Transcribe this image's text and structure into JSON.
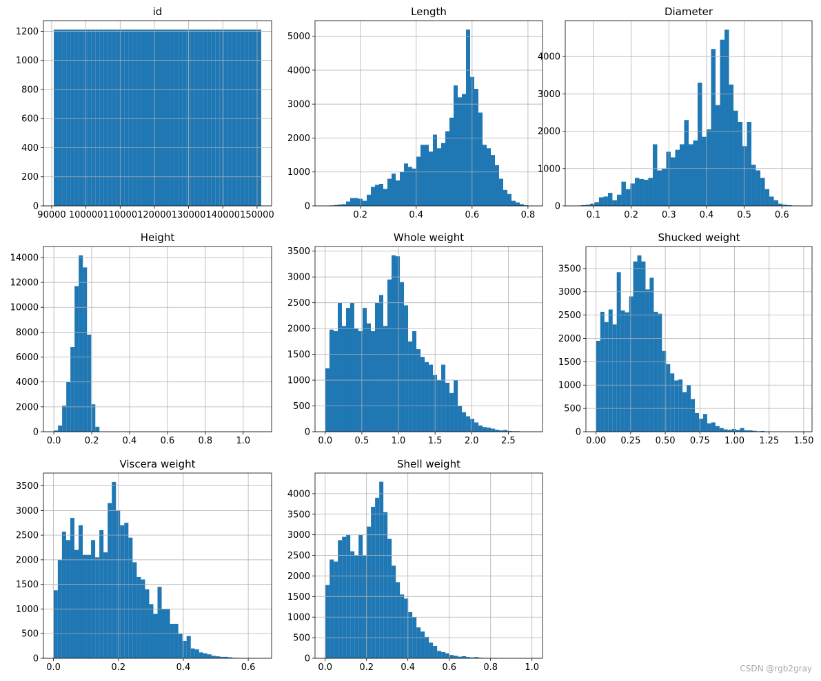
{
  "chart_data": [
    {
      "type": "histogram",
      "title": "id",
      "color": "#1f77b4",
      "grid": true,
      "bins": [
        90615,
        91827,
        93039,
        94251,
        95463,
        96675,
        97887,
        99099,
        100311,
        101523,
        102735,
        103947,
        105159,
        106371,
        107583,
        108795,
        110007,
        111219,
        112431,
        113643,
        114855,
        116067,
        117279,
        118491,
        119703,
        120915,
        122127,
        123339,
        124551,
        125763,
        126975,
        128187,
        129399,
        130611,
        131823,
        133035,
        134247,
        135459,
        136671,
        137883,
        139095,
        140307,
        141519,
        142731,
        143943,
        145155,
        146367,
        147579,
        148791,
        150003,
        151215
      ],
      "values": [
        1212,
        1212,
        1212,
        1212,
        1212,
        1212,
        1212,
        1212,
        1212,
        1212,
        1212,
        1212,
        1212,
        1212,
        1212,
        1212,
        1212,
        1212,
        1212,
        1212,
        1212,
        1212,
        1212,
        1212,
        1212,
        1212,
        1212,
        1212,
        1212,
        1212,
        1212,
        1212,
        1212,
        1212,
        1212,
        1212,
        1212,
        1212,
        1212,
        1212,
        1212,
        1212,
        1212,
        1212,
        1212,
        1212,
        1212,
        1212,
        1212,
        1212
      ],
      "xlim": [
        87585,
        154245
      ],
      "xticks": [
        90000,
        100000,
        110000,
        120000,
        130000,
        140000,
        150000
      ],
      "ylim": [
        0,
        1273
      ],
      "yticks": [
        0,
        200,
        400,
        600,
        800,
        1000,
        1200
      ]
    },
    {
      "type": "histogram",
      "title": "Length",
      "color": "#1f77b4",
      "grid": true,
      "bins": [
        0.075,
        0.0898,
        0.1046,
        0.1194,
        0.1342,
        0.149,
        0.1638,
        0.1786,
        0.1934,
        0.2082,
        0.223,
        0.2378,
        0.2526,
        0.2674,
        0.2822,
        0.297,
        0.3118,
        0.3266,
        0.3414,
        0.3562,
        0.371,
        0.3858,
        0.4006,
        0.4154,
        0.4302,
        0.445,
        0.4598,
        0.4746,
        0.4894,
        0.5042,
        0.519,
        0.5338,
        0.5486,
        0.5634,
        0.5782,
        0.593,
        0.6078,
        0.6226,
        0.6374,
        0.6522,
        0.667,
        0.6818,
        0.6966,
        0.7114,
        0.7262,
        0.741,
        0.7558,
        0.7706,
        0.7854,
        0.8002,
        0.815
      ],
      "values": [
        10,
        15,
        25,
        40,
        50,
        130,
        230,
        230,
        210,
        150,
        330,
        560,
        620,
        650,
        500,
        800,
        950,
        750,
        1000,
        1250,
        1150,
        1100,
        1450,
        1800,
        1800,
        1600,
        2100,
        1700,
        1850,
        2200,
        2600,
        3550,
        3200,
        3300,
        5200,
        3800,
        3450,
        2750,
        1800,
        1700,
        1500,
        1200,
        800,
        470,
        350,
        150,
        100,
        50,
        20,
        10
      ],
      "xlim": [
        0.038,
        0.852
      ],
      "xticks": [
        0.2,
        0.4,
        0.6,
        0.8
      ],
      "ylim": [
        0,
        5460
      ],
      "yticks": [
        0,
        1000,
        2000,
        3000,
        4000,
        5000
      ]
    },
    {
      "type": "histogram",
      "title": "Diameter",
      "color": "#1f77b4",
      "grid": true,
      "bins": [
        0.055,
        0.0669,
        0.0788,
        0.0907,
        0.1026,
        0.1145,
        0.1264,
        0.1383,
        0.1502,
        0.1621,
        0.174,
        0.1859,
        0.1978,
        0.2097,
        0.2216,
        0.2335,
        0.2454,
        0.2573,
        0.2692,
        0.2811,
        0.293,
        0.3049,
        0.3168,
        0.3287,
        0.3406,
        0.3525,
        0.3644,
        0.3763,
        0.3882,
        0.4001,
        0.412,
        0.4239,
        0.4358,
        0.4477,
        0.4596,
        0.4715,
        0.4834,
        0.4953,
        0.5072,
        0.5191,
        0.531,
        0.5429,
        0.5548,
        0.5667,
        0.5786,
        0.5905,
        0.6024,
        0.6143,
        0.6262,
        0.6381,
        0.65
      ],
      "values": [
        10,
        20,
        30,
        60,
        100,
        230,
        250,
        350,
        150,
        300,
        650,
        450,
        600,
        750,
        720,
        700,
        750,
        1650,
        950,
        1000,
        1450,
        1300,
        1500,
        1650,
        2300,
        1650,
        1750,
        3300,
        1850,
        2050,
        4200,
        2700,
        4450,
        4720,
        3250,
        2550,
        2250,
        1600,
        2250,
        1100,
        950,
        750,
        450,
        250,
        150,
        60,
        30,
        20,
        10,
        5
      ],
      "xlim": [
        0.025,
        0.68
      ],
      "xticks": [
        0.1,
        0.2,
        0.3,
        0.4,
        0.5,
        0.6
      ],
      "ylim": [
        0,
        4960
      ],
      "yticks": [
        0,
        1000,
        2000,
        3000,
        4000
      ]
    },
    {
      "type": "histogram",
      "title": "Height",
      "color": "#1f77b4",
      "grid": true,
      "bins": [
        0,
        0.0219,
        0.0438,
        0.0657,
        0.0876,
        0.1095,
        0.1314,
        0.1533,
        0.1752,
        0.1971,
        0.219,
        0.2409,
        0.2628,
        0.2847,
        0.3066,
        0.3285,
        0.3504,
        0.3723,
        0.3942,
        0.4161,
        0.438,
        0.4599,
        0.4818,
        0.5037,
        0.5256,
        0.5475,
        0.5694,
        0.5913,
        0.6132,
        0.6351,
        0.657,
        0.6789,
        0.7008,
        0.7227,
        0.7446,
        0.7665,
        0.7884,
        0.8103,
        0.8322,
        0.8541,
        0.876,
        0.8979,
        0.9198,
        0.9417,
        0.9636,
        0.9855,
        1.0074,
        1.0293,
        1.0512,
        1.0731,
        1.095
      ],
      "values": [
        100,
        500,
        2100,
        4000,
        6800,
        11700,
        14170,
        13200,
        7800,
        2200,
        400,
        20,
        2,
        0,
        0,
        0,
        0,
        0,
        0,
        0,
        0,
        0,
        0,
        0,
        0,
        0,
        0,
        0,
        0,
        0,
        0,
        0,
        0,
        0,
        0,
        0,
        0,
        0,
        0,
        0,
        0,
        0,
        0,
        0,
        0,
        0,
        0,
        0,
        0,
        1
      ],
      "xlim": [
        -0.055,
        1.15
      ],
      "xticks": [
        {
          "value": 0,
          "label": "0.0"
        },
        0.2,
        0.4,
        0.6,
        0.8,
        {
          "value": 1,
          "label": "1.0"
        }
      ],
      "ylim": [
        0,
        14880
      ],
      "yticks": [
        0,
        2000,
        4000,
        6000,
        8000,
        10000,
        12000,
        14000
      ]
    },
    {
      "type": "histogram",
      "title": "Whole weight",
      "color": "#1f77b4",
      "grid": true,
      "bins": [
        0.002,
        0.0585,
        0.115,
        0.1715,
        0.228,
        0.2845,
        0.341,
        0.3975,
        0.454,
        0.5105,
        0.567,
        0.6235,
        0.68,
        0.7365,
        0.793,
        0.8495,
        0.906,
        0.9625,
        1.019,
        1.0755,
        1.132,
        1.1885,
        1.245,
        1.3015,
        1.358,
        1.4145,
        1.471,
        1.5275,
        1.584,
        1.6405,
        1.697,
        1.7535,
        1.81,
        1.8665,
        1.923,
        1.9795,
        2.036,
        2.0925,
        2.149,
        2.2055,
        2.262,
        2.3185,
        2.375,
        2.4315,
        2.488,
        2.5445,
        2.601,
        2.6575,
        2.714,
        2.7705,
        2.827
      ],
      "values": [
        1230,
        1980,
        1950,
        2500,
        2050,
        2400,
        2500,
        2000,
        1950,
        2400,
        2100,
        1950,
        2500,
        2650,
        2050,
        2950,
        3420,
        3400,
        2900,
        2450,
        1750,
        1950,
        1600,
        1450,
        1350,
        1300,
        1100,
        1000,
        1300,
        950,
        750,
        1000,
        500,
        380,
        300,
        250,
        180,
        120,
        90,
        80,
        60,
        40,
        25,
        35,
        15,
        10,
        10,
        5,
        3,
        2
      ],
      "xlim": [
        -0.139,
        2.967
      ],
      "xticks": [
        {
          "value": 0,
          "label": "0.0"
        },
        0.5,
        {
          "value": 1,
          "label": "1.0"
        },
        1.5,
        {
          "value": 2,
          "label": "2.0"
        },
        2.5
      ],
      "ylim": [
        0,
        3590
      ],
      "yticks": [
        0,
        500,
        1000,
        1500,
        2000,
        2500,
        3000,
        3500
      ]
    },
    {
      "type": "histogram",
      "title": "Shucked weight",
      "color": "#1f77b4",
      "grid": true,
      "bins": [
        0.001,
        0.0307,
        0.0604,
        0.0901,
        0.1198,
        0.1495,
        0.1792,
        0.2089,
        0.2386,
        0.2683,
        0.298,
        0.3277,
        0.3574,
        0.3871,
        0.4168,
        0.4465,
        0.4762,
        0.5059,
        0.5356,
        0.5653,
        0.595,
        0.6247,
        0.6544,
        0.6841,
        0.7138,
        0.7435,
        0.7732,
        0.8029,
        0.8326,
        0.8623,
        0.892,
        0.9217,
        0.9514,
        0.9811,
        1.0108,
        1.0405,
        1.0702,
        1.0999,
        1.1296,
        1.1593,
        1.189,
        1.2187,
        1.2484,
        1.2781,
        1.3078,
        1.3375,
        1.3672,
        1.3969,
        1.4266,
        1.4563,
        1.486
      ],
      "values": [
        1950,
        2570,
        2350,
        2620,
        2300,
        3420,
        2600,
        2560,
        2900,
        3650,
        3780,
        3650,
        3050,
        3300,
        2570,
        2530,
        1730,
        1450,
        1250,
        1100,
        1120,
        850,
        1000,
        700,
        400,
        280,
        380,
        180,
        200,
        120,
        80,
        50,
        40,
        60,
        40,
        80,
        30,
        30,
        20,
        10,
        15,
        5,
        5,
        3,
        2,
        2,
        1,
        1,
        1,
        1
      ],
      "xlim": [
        -0.073,
        1.56
      ],
      "xticks": [
        {
          "value": 0,
          "label": "0.00"
        },
        0.25,
        {
          "value": 0.5,
          "label": "0.50"
        },
        0.75,
        {
          "value": 1,
          "label": "1.00"
        },
        1.25,
        {
          "value": 1.5,
          "label": "1.50"
        }
      ],
      "ylim": [
        0,
        3970
      ],
      "yticks": [
        0,
        500,
        1000,
        1500,
        2000,
        2500,
        3000,
        3500
      ]
    },
    {
      "type": "histogram",
      "title": "Viscera weight",
      "color": "#1f77b4",
      "grid": true,
      "bins": [
        0.0005,
        0.0133,
        0.0261,
        0.0389,
        0.0517,
        0.0645,
        0.0773,
        0.0901,
        0.1029,
        0.1157,
        0.1285,
        0.1413,
        0.1541,
        0.1669,
        0.1797,
        0.1925,
        0.2053,
        0.2181,
        0.2309,
        0.2437,
        0.2565,
        0.2693,
        0.2821,
        0.2949,
        0.3077,
        0.3205,
        0.3333,
        0.3461,
        0.3589,
        0.3717,
        0.3845,
        0.3973,
        0.4101,
        0.4229,
        0.4357,
        0.4485,
        0.4613,
        0.4741,
        0.4869,
        0.4997,
        0.5125,
        0.5253,
        0.5381,
        0.5509,
        0.5637,
        0.5765,
        0.5893,
        0.6021,
        0.6149,
        0.6277,
        0.6405
      ],
      "values": [
        1380,
        2000,
        2570,
        2400,
        2850,
        2200,
        2700,
        2100,
        2100,
        2400,
        2050,
        2600,
        2150,
        3150,
        3580,
        3000,
        2700,
        2750,
        2450,
        1950,
        1650,
        1600,
        1400,
        1100,
        900,
        1450,
        1000,
        1000,
        700,
        700,
        500,
        350,
        450,
        200,
        180,
        120,
        100,
        80,
        50,
        40,
        30,
        30,
        20,
        10,
        8,
        5,
        3,
        2,
        1,
        1
      ],
      "xlim": [
        -0.031,
        0.672
      ],
      "xticks": [
        {
          "value": 0,
          "label": "0.0"
        },
        0.2,
        0.4,
        0.6
      ],
      "ylim": [
        0,
        3760
      ],
      "yticks": [
        0,
        500,
        1000,
        1500,
        2000,
        2500,
        3000,
        3500
      ]
    },
    {
      "type": "histogram",
      "title": "Shell weight",
      "color": "#1f77b4",
      "grid": true,
      "bins": [
        0.0015,
        0.0215,
        0.0415,
        0.0615,
        0.0815,
        0.1015,
        0.1215,
        0.1415,
        0.1615,
        0.1815,
        0.2015,
        0.2215,
        0.2415,
        0.2615,
        0.2815,
        0.3015,
        0.3215,
        0.3415,
        0.3615,
        0.3815,
        0.4015,
        0.4215,
        0.4415,
        0.4615,
        0.4815,
        0.5015,
        0.5215,
        0.5415,
        0.5615,
        0.5815,
        0.6015,
        0.6215,
        0.6415,
        0.6615,
        0.6815,
        0.7015,
        0.7215,
        0.7415,
        0.7615,
        0.7815,
        0.8015,
        0.8215,
        0.8415,
        0.8615,
        0.8815,
        0.9015,
        0.9215,
        0.9415,
        0.9615,
        0.9815,
        1.0015
      ],
      "values": [
        1780,
        2400,
        2350,
        2870,
        2950,
        3000,
        2600,
        2500,
        3000,
        2500,
        3200,
        3680,
        3900,
        4290,
        3550,
        2900,
        2250,
        1850,
        1550,
        1450,
        1120,
        1000,
        750,
        650,
        520,
        380,
        300,
        180,
        150,
        120,
        80,
        60,
        40,
        50,
        30,
        20,
        30,
        15,
        10,
        8,
        5,
        5,
        3,
        2,
        2,
        1,
        1,
        1,
        1,
        1
      ],
      "xlim": [
        -0.049,
        1.051
      ],
      "xticks": [
        {
          "value": 0,
          "label": "0.0"
        },
        0.2,
        0.4,
        0.6,
        0.8,
        {
          "value": 1,
          "label": "1.0"
        }
      ],
      "ylim": [
        0,
        4500
      ],
      "yticks": [
        0,
        500,
        1000,
        1500,
        2000,
        2500,
        3000,
        3500,
        4000
      ]
    }
  ],
  "watermark": "CSDN @rgb2gray"
}
